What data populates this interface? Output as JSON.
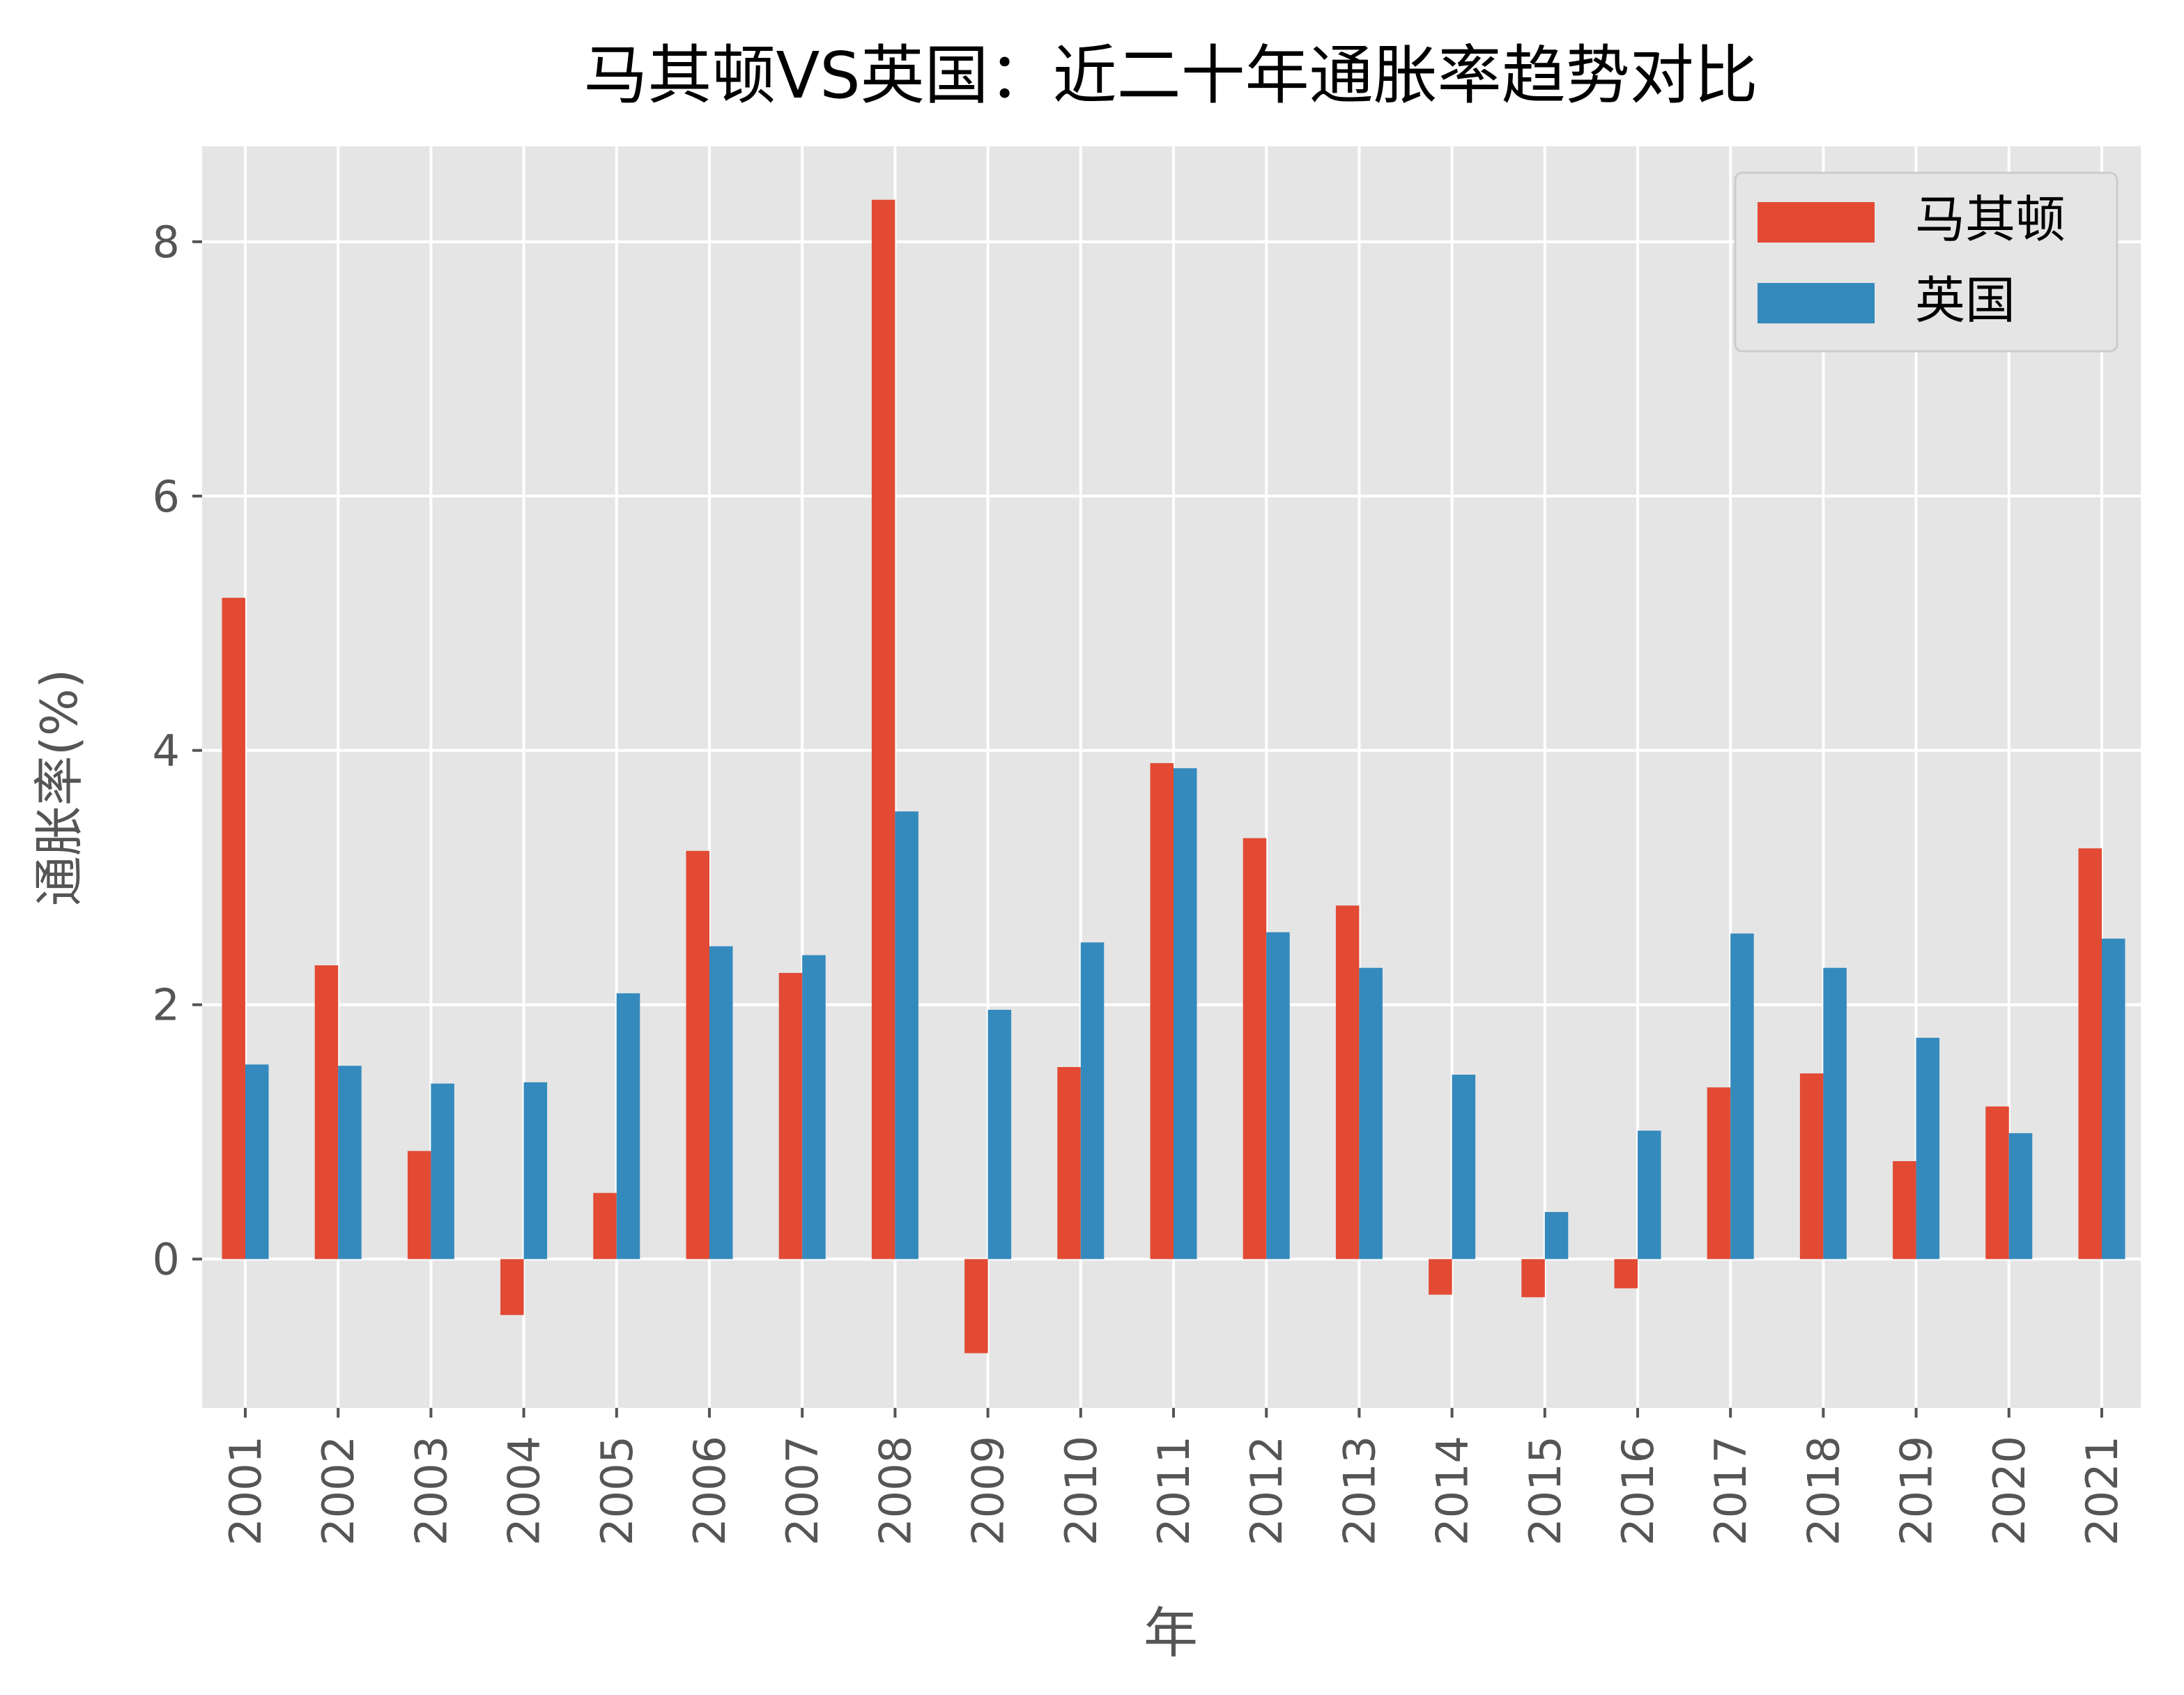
{
  "chart_data": {
    "type": "bar",
    "title": "马其顿VS英国：近二十年通胀率趋势对比",
    "xlabel": "年",
    "ylabel": "通胀率(%)",
    "categories": [
      "2001",
      "2002",
      "2003",
      "2004",
      "2005",
      "2006",
      "2007",
      "2008",
      "2009",
      "2010",
      "2011",
      "2012",
      "2013",
      "2014",
      "2015",
      "2016",
      "2017",
      "2018",
      "2019",
      "2020",
      "2021"
    ],
    "series": [
      {
        "name": "马其顿",
        "color": "#E24A33",
        "values": [
          5.2,
          2.31,
          0.85,
          -0.44,
          0.52,
          3.21,
          2.25,
          8.33,
          -0.74,
          1.51,
          3.9,
          3.31,
          2.78,
          -0.28,
          -0.3,
          -0.23,
          1.35,
          1.46,
          0.77,
          1.2,
          3.23
        ]
      },
      {
        "name": "英国",
        "color": "#348ABD",
        "values": [
          1.53,
          1.52,
          1.38,
          1.39,
          2.09,
          2.46,
          2.39,
          3.52,
          1.96,
          2.49,
          3.86,
          2.57,
          2.29,
          1.45,
          0.37,
          1.01,
          2.56,
          2.29,
          1.74,
          0.99,
          2.52
        ]
      }
    ],
    "yticks": [
      0,
      2,
      4,
      6,
      8
    ],
    "ylim": [
      -1.17,
      8.75
    ],
    "grid": true,
    "legend_position": "top-right",
    "background_color": "#E5E5E5",
    "grid_color": "#FFFFFF"
  }
}
